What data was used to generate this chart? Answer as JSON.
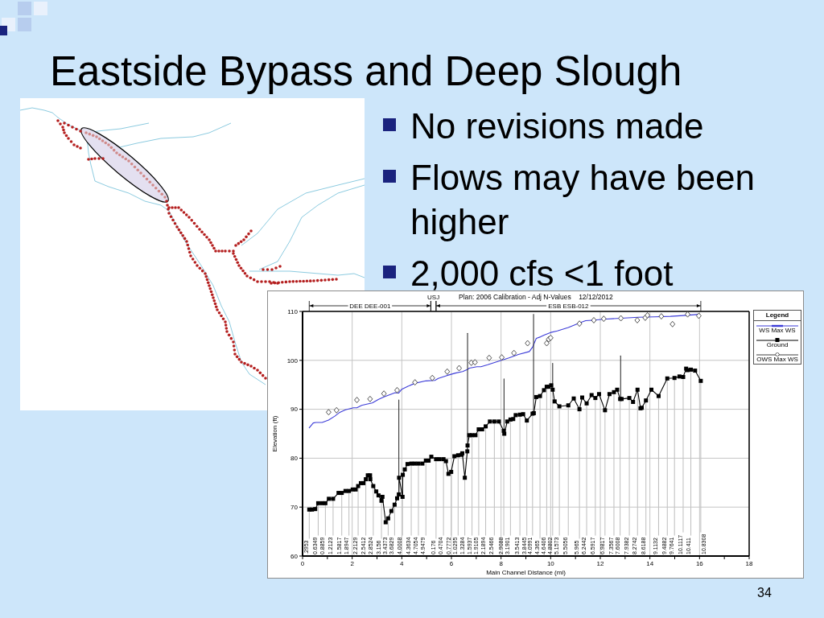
{
  "chart_data": {
    "type": "line",
    "title": "Eastside Bypass and Deep Slough",
    "subtitle": "Plan: 2006 Calibration - Adj N-Values    12/12/2012",
    "xlabel": "Main Channel Distance (mi)",
    "ylabel": "Elevation (ft)",
    "legend_title": "Legend",
    "legend": "top right",
    "grid": true,
    "xlim": [
      0,
      18
    ],
    "xticks": [
      0,
      {
        "value": 1,
        "label": null
      },
      2,
      {
        "value": 3,
        "label": null
      },
      4,
      {
        "value": 5,
        "label": null
      },
      6,
      {
        "value": 7,
        "label": null
      },
      8,
      {
        "value": 9,
        "label": null
      },
      10,
      {
        "value": 11,
        "label": null
      },
      12,
      {
        "value": 13,
        "label": null
      },
      14,
      {
        "value": 15,
        "label": null
      },
      16,
      {
        "value": 17,
        "label": null
      },
      18
    ],
    "ylim": [
      60,
      110
    ],
    "yticks": [
      60,
      70,
      80,
      90,
      100,
      110
    ],
    "series": [
      {
        "name": "WS Max WS",
        "color": "#3c3cd8",
        "marker": "none",
        "x": [
          0.27,
          0.43,
          0.54,
          0.79,
          1.05,
          1.3,
          1.48,
          1.73,
          2.05,
          2.19,
          2.38,
          2.55,
          2.81,
          3.05,
          3.26,
          3.73,
          3.87,
          4.0,
          4.25,
          4.52,
          4.97,
          5.33,
          5.47,
          5.82,
          6.16,
          6.45,
          6.64,
          6.72,
          7.03,
          7.19,
          7.46,
          7.89,
          8.32,
          8.7,
          9.14,
          9.27,
          9.42,
          9.59,
          9.75,
          10.0,
          10.27,
          10.71,
          11.19,
          11.41,
          11.68,
          12.12,
          12.82,
          13.53,
          14.18,
          14.83,
          15.48,
          15.97
        ],
        "values": [
          86.2,
          87.2,
          87.3,
          87.3,
          87.8,
          88.6,
          89.3,
          89.9,
          90.3,
          90.3,
          90.8,
          91.0,
          91.3,
          92.0,
          92.5,
          93.4,
          93.3,
          94.1,
          94.7,
          95.3,
          95.8,
          95.9,
          96.3,
          96.9,
          97.4,
          97.7,
          98.1,
          98.4,
          98.7,
          98.7,
          99.1,
          99.8,
          100.5,
          101.2,
          101.8,
          102.7,
          104.5,
          104.8,
          105.2,
          105.7,
          106.0,
          106.7,
          107.7,
          108.1,
          108.2,
          108.4,
          108.6,
          108.8,
          108.9,
          109.0,
          109.2,
          109.4
        ]
      },
      {
        "name": "Ground",
        "color": "#000000",
        "marker": "square",
        "x": [
          0.27,
          0.38,
          0.51,
          0.63,
          0.79,
          0.92,
          1.06,
          1.23,
          1.45,
          1.58,
          1.73,
          1.87,
          2.02,
          2.14,
          2.24,
          2.35,
          2.45,
          2.55,
          2.63,
          2.72,
          2.73,
          2.85,
          2.97,
          3.06,
          3.18,
          3.22,
          3.35,
          3.45,
          3.58,
          3.71,
          3.81,
          3.88,
          3.89,
          4.03,
          4.04,
          4.12,
          4.23,
          4.38,
          4.52,
          4.67,
          4.83,
          4.97,
          5.08,
          5.19,
          5.38,
          5.52,
          5.68,
          5.78,
          5.88,
          5.99,
          6.12,
          6.27,
          6.41,
          6.44,
          6.54,
          6.64,
          6.65,
          6.72,
          6.83,
          6.97,
          7.1,
          7.24,
          7.38,
          7.55,
          7.73,
          7.91,
          8.11,
          8.13,
          8.25,
          8.38,
          8.49,
          8.59,
          8.76,
          8.89,
          9.04,
          9.27,
          9.32,
          9.42,
          9.57,
          9.73,
          9.84,
          9.91,
          10.02,
          10.08,
          10.16,
          10.35,
          10.71,
          10.93,
          11.16,
          11.27,
          11.45,
          11.65,
          11.8,
          11.95,
          12.19,
          12.37,
          12.55,
          12.68,
          12.8,
          12.86,
          13.17,
          13.32,
          13.5,
          13.62,
          13.67,
          13.84,
          14.06,
          14.35,
          14.7,
          14.99,
          15.19,
          15.34,
          15.46,
          15.52,
          15.65,
          15.82,
          16.05
        ],
        "values": [
          69.5,
          69.5,
          69.6,
          70.8,
          70.8,
          70.8,
          71.7,
          71.7,
          72.9,
          72.9,
          73.3,
          73.3,
          73.6,
          73.6,
          74.3,
          74.9,
          74.9,
          75.7,
          76.5,
          76.5,
          75.7,
          74.3,
          73.2,
          72.4,
          71.3,
          72.1,
          66.9,
          67.7,
          69.2,
          70.5,
          71.8,
          72.6,
          76.0,
          72.1,
          76.6,
          77.7,
          78.8,
          78.9,
          78.9,
          78.9,
          78.9,
          79.5,
          79.5,
          80.3,
          79.8,
          79.8,
          79.8,
          79.4,
          76.8,
          77.2,
          80.4,
          80.6,
          80.7,
          81.0,
          76.0,
          81.4,
          82.6,
          84.7,
          84.7,
          84.7,
          85.9,
          85.9,
          86.5,
          87.5,
          87.5,
          87.5,
          85.6,
          85.0,
          87.5,
          87.9,
          88.0,
          88.8,
          88.9,
          89.0,
          87.7,
          89.1,
          89.2,
          92.5,
          92.7,
          93.9,
          94.6,
          94.6,
          94.9,
          94.0,
          91.6,
          90.6,
          90.8,
          92.2,
          90.0,
          92.4,
          91.2,
          92.9,
          92.3,
          93.1,
          89.8,
          93.1,
          93.5,
          94.0,
          92.1,
          92.1,
          92.3,
          91.5,
          94.0,
          90.2,
          90.3,
          91.8,
          94.0,
          92.7,
          96.3,
          96.4,
          96.7,
          96.6,
          98.3,
          98.0,
          98.1,
          97.9,
          95.8
        ]
      },
      {
        "name": "OWS Max WS",
        "type": "scatter",
        "color": "#404040",
        "marker": "diamond",
        "x": [
          1.05,
          1.37,
          2.19,
          2.72,
          3.28,
          3.81,
          4.53,
          5.23,
          5.83,
          6.31,
          6.8,
          6.95,
          7.52,
          8.03,
          8.52,
          9.07,
          9.84,
          9.92,
          10.0,
          11.16,
          11.74,
          12.14,
          12.83,
          13.49,
          13.81,
          13.9,
          14.46,
          14.91,
          15.52,
          15.97
        ],
        "values": [
          89.4,
          89.8,
          91.9,
          92.1,
          93.2,
          93.9,
          95.5,
          96.4,
          97.7,
          98.4,
          99.5,
          99.6,
          100.5,
          100.6,
          101.5,
          103.5,
          103.5,
          104.3,
          104.6,
          107.5,
          108.2,
          108.5,
          108.6,
          108.2,
          108.7,
          109.2,
          109.0,
          107.4,
          109.4,
          109.1
        ]
      },
      {
        "color": "#333333",
        "marker": "none",
        "x": [
          3.88,
          3.88
        ],
        "values": [
          72.6,
          91.9
        ]
      },
      {
        "color": "#333333",
        "marker": "none",
        "x": [
          6.65,
          6.65
        ],
        "values": [
          82.6,
          105.5
        ]
      },
      {
        "color": "#333333",
        "marker": "none",
        "x": [
          8.12,
          8.12
        ],
        "values": [
          85.0,
          96.2
        ]
      },
      {
        "color": "#333333",
        "marker": "none",
        "x": [
          9.31,
          9.31
        ],
        "values": [
          89.2,
          109.4
        ]
      },
      {
        "color": "#333333",
        "marker": "none",
        "x": [
          10.08,
          10.08
        ],
        "values": [
          94.0,
          99.4
        ]
      },
      {
        "color": "#333333",
        "marker": "none",
        "x": [
          12.82,
          12.82
        ],
        "values": [
          92.1,
          100.9
        ]
      }
    ],
    "annotations": [
      "No revisions made",
      "Flows may have been higher",
      "2,000 cfs <1 foot",
      "DEE DEE-001",
      "USJ",
      "ESB ESB-012",
      "34",
      {
        "text": ".2953",
        "x": 0.27,
        "y": 69.5
      },
      {
        "text": "0.6349",
        "x": 0.63,
        "y": 70.8
      },
      {
        "text": "0.8859",
        "x": 0.92,
        "y": 70.8
      },
      {
        "text": "1.2123",
        "x": 1.23,
        "y": 71.7
      },
      {
        "text": "1.5817",
        "x": 1.58,
        "y": 72.9
      },
      {
        "text": "1.8947",
        "x": 1.87,
        "y": 73.3
      },
      {
        "text": "2.2129",
        "x": 2.24,
        "y": 74.3
      },
      {
        "text": "2.5412",
        "x": 2.55,
        "y": 75.7
      },
      {
        "text": "2.8524",
        "x": 2.85,
        "y": 74.3
      },
      {
        "text": "3.156",
        "x": 3.18,
        "y": 71.3
      },
      {
        "text": "3.4373",
        "x": 3.45,
        "y": 67.7
      },
      {
        "text": "3.6829",
        "x": 3.71,
        "y": 70.5
      },
      {
        "text": "4.0008",
        "x": 4.03,
        "y": 72.1
      },
      {
        "text": "4.3634",
        "x": 4.38,
        "y": 78.9
      },
      {
        "text": "4.7054",
        "x": 4.67,
        "y": 78.9
      },
      {
        "text": "4.9479",
        "x": 4.97,
        "y": 79.5
      },
      {
        "text": "0.176",
        "x": 5.38,
        "y": 79.8
      },
      {
        "text": "0.4704",
        "x": 5.68,
        "y": 79.8
      },
      {
        "text": "0.7772",
        "x": 5.99,
        "y": 77.2
      },
      {
        "text": "1.0295",
        "x": 6.27,
        "y": 80.6
      },
      {
        "text": "1.3284",
        "x": 6.54,
        "y": 76.0
      },
      {
        "text": "1.5937",
        "x": 6.83,
        "y": 84.7
      },
      {
        "text": "1.9105",
        "x": 7.1,
        "y": 85.9
      },
      {
        "text": "2.1894",
        "x": 7.38,
        "y": 86.5
      },
      {
        "text": "2.5466",
        "x": 7.73,
        "y": 87.5
      },
      {
        "text": "2.9088",
        "x": 8.11,
        "y": 85.6
      },
      {
        "text": "3.1901",
        "x": 8.38,
        "y": 87.9
      },
      {
        "text": "3.5413",
        "x": 8.76,
        "y": 88.9
      },
      {
        "text": "3.8445",
        "x": 9.04,
        "y": 87.7
      },
      {
        "text": "4.0991",
        "x": 9.27,
        "y": 89.1
      },
      {
        "text": "4.365",
        "x": 9.57,
        "y": 92.7
      },
      {
        "text": "4.6406",
        "x": 9.84,
        "y": 94.6
      },
      {
        "text": "4.8802",
        "x": 10.08,
        "y": 94.0
      },
      {
        "text": "5.1573",
        "x": 10.35,
        "y": 90.6
      },
      {
        "text": "5.5056",
        "x": 10.71,
        "y": 90.8
      },
      {
        "text": "5.965",
        "x": 11.16,
        "y": 90.0
      },
      {
        "text": "6.2442",
        "x": 11.45,
        "y": 91.2
      },
      {
        "text": "6.5917",
        "x": 11.8,
        "y": 92.3
      },
      {
        "text": "6.9817",
        "x": 12.19,
        "y": 89.8
      },
      {
        "text": "7.3567",
        "x": 12.55,
        "y": 93.5
      },
      {
        "text": "7.6008",
        "x": 12.8,
        "y": 92.1
      },
      {
        "text": "7.9382",
        "x": 13.17,
        "y": 92.3
      },
      {
        "text": "8.2742",
        "x": 13.5,
        "y": 94.0
      },
      {
        "text": "8.6188",
        "x": 13.84,
        "y": 91.8
      },
      {
        "text": "9.1132",
        "x": 14.35,
        "y": 92.7
      },
      {
        "text": "9.4882",
        "x": 14.7,
        "y": 96.3
      },
      {
        "text": "9.7641",
        "x": 14.99,
        "y": 96.4
      },
      {
        "text": "10.1117",
        "x": 15.34,
        "y": 96.6
      },
      {
        "text": "10.411",
        "x": 15.65,
        "y": 98.1
      },
      {
        "text": "10.8308",
        "x": 16.05,
        "y": 95.8
      }
    ]
  }
}
